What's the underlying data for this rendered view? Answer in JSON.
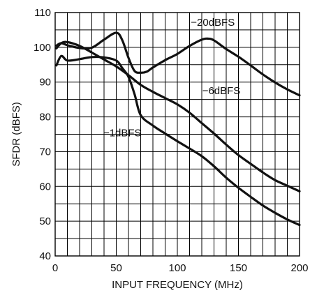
{
  "chart_data": {
    "type": "line",
    "title": "",
    "xlabel": "INPUT FREQUENCY (MHz)",
    "ylabel": "SFDR (dBFS)",
    "xlim": [
      0,
      200
    ],
    "ylim": [
      40,
      110
    ],
    "x_ticks": [
      0,
      50,
      100,
      150,
      200
    ],
    "y_ticks": [
      40,
      50,
      60,
      70,
      80,
      90,
      100,
      110
    ],
    "grid": true,
    "x_grid_step": 10,
    "y_grid_step": 5,
    "series": [
      {
        "name": "−20dBFS",
        "x": [
          1,
          5,
          10,
          20,
          30,
          40,
          50,
          55,
          60,
          65,
          70,
          75,
          80,
          90,
          100,
          110,
          120,
          125,
          130,
          140,
          150,
          160,
          170,
          180,
          190,
          200
        ],
        "values": [
          100.5,
          101.2,
          100.6,
          99.8,
          99.9,
          102.2,
          104.2,
          102,
          97,
          93.2,
          92.7,
          93,
          94.2,
          96.3,
          98.1,
          100.4,
          102.2,
          102.5,
          102,
          99.5,
          97.3,
          94.8,
          92.2,
          89.9,
          87.9,
          86.2
        ]
      },
      {
        "name": "−6dBFS",
        "x": [
          1,
          5,
          10,
          20,
          30,
          40,
          50,
          60,
          70,
          80,
          90,
          100,
          110,
          120,
          130,
          140,
          150,
          160,
          170,
          180,
          190,
          200
        ],
        "values": [
          99.7,
          101.2,
          101.5,
          100.4,
          98.5,
          96.5,
          94.5,
          92,
          89.2,
          87.2,
          85.4,
          83.6,
          81.2,
          78.2,
          75.2,
          72,
          69,
          66.5,
          64,
          61.8,
          60.2,
          58.6
        ]
      },
      {
        "name": "−1dBFS",
        "x": [
          1,
          5,
          10,
          20,
          30,
          40,
          50,
          55,
          60,
          65,
          70,
          80,
          90,
          100,
          110,
          120,
          130,
          140,
          150,
          160,
          170,
          180,
          190,
          200
        ],
        "values": [
          94.8,
          97.5,
          96.2,
          96.6,
          97.2,
          97.1,
          96.2,
          94,
          91.5,
          86.5,
          80.5,
          77.5,
          75.2,
          73,
          70.9,
          68.7,
          65.8,
          62.5,
          59.6,
          57,
          54.5,
          52.4,
          50.5,
          48.9
        ]
      }
    ],
    "annotations": [
      {
        "text": "−20dBFS",
        "series": "−20dBFS",
        "x": 129,
        "y": 106.2
      },
      {
        "text": "−6dBFS",
        "series": "−6dBFS",
        "x": 136,
        "y": 86.5
      },
      {
        "text": "−1dBFS",
        "series": "−1dBFS",
        "x": 55,
        "y": 74.4
      }
    ]
  }
}
